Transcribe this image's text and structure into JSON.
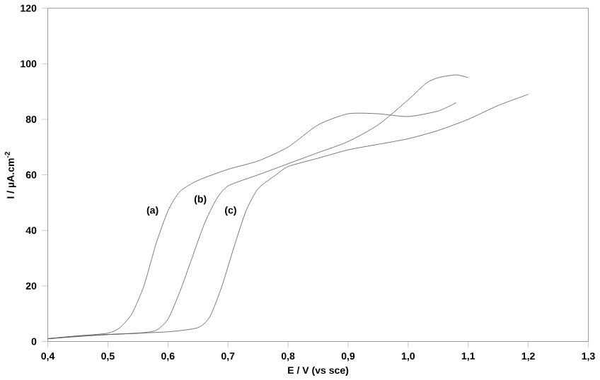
{
  "chart_data": {
    "type": "line",
    "xlabel": "E / V (vs sce)",
    "ylabel": "I / µA.cm$^{-2}$",
    "xlim": [
      0.4,
      1.3
    ],
    "ylim": [
      0,
      120
    ],
    "xticks": [
      {
        "value": 0.4,
        "label": "0,4"
      },
      {
        "value": 0.5,
        "label": "0,5"
      },
      {
        "value": 0.6,
        "label": "0,6"
      },
      {
        "value": 0.7,
        "label": "0,7"
      },
      {
        "value": 0.8,
        "label": "0,8"
      },
      {
        "value": 0.9,
        "label": "0,9"
      },
      {
        "value": 1.0,
        "label": "1,0"
      },
      {
        "value": 1.1,
        "label": "1,1"
      },
      {
        "value": 1.2,
        "label": "1,2"
      },
      {
        "value": 1.3,
        "label": "1,3"
      }
    ],
    "yticks": [
      0,
      20,
      40,
      60,
      80,
      100,
      120
    ],
    "grid": false,
    "marker": "none",
    "line_style": "solid",
    "series": [
      {
        "name": "(a)",
        "color": "#555555",
        "x": [
          0.4,
          0.45,
          0.5,
          0.52,
          0.54,
          0.56,
          0.58,
          0.6,
          0.62,
          0.65,
          0.7,
          0.75,
          0.8,
          0.85,
          0.9,
          0.95,
          1.0,
          1.05,
          1.08
        ],
        "values": [
          1,
          2,
          3,
          5,
          10,
          20,
          35,
          47,
          54,
          58,
          62,
          65,
          70,
          78,
          82,
          82,
          81,
          83,
          86
        ]
      },
      {
        "name": "(b)",
        "color": "#555555",
        "x": [
          0.4,
          0.45,
          0.5,
          0.55,
          0.58,
          0.6,
          0.62,
          0.64,
          0.66,
          0.68,
          0.7,
          0.75,
          0.8,
          0.85,
          0.9,
          0.95,
          1.0,
          1.03,
          1.05,
          1.08,
          1.1
        ],
        "values": [
          1,
          2,
          2.5,
          3,
          4,
          8,
          18,
          30,
          42,
          51,
          56,
          60,
          64,
          68,
          72,
          78,
          87,
          93,
          95,
          96,
          95
        ]
      },
      {
        "name": "(c)",
        "color": "#555555",
        "x": [
          0.4,
          0.5,
          0.6,
          0.65,
          0.67,
          0.69,
          0.71,
          0.73,
          0.75,
          0.78,
          0.8,
          0.85,
          0.9,
          0.95,
          1.0,
          1.05,
          1.1,
          1.15,
          1.2
        ],
        "values": [
          1,
          2.5,
          3.5,
          5,
          9,
          20,
          34,
          47,
          55,
          60,
          63,
          66,
          69,
          71,
          73,
          76,
          80,
          85,
          89
        ]
      }
    ]
  }
}
